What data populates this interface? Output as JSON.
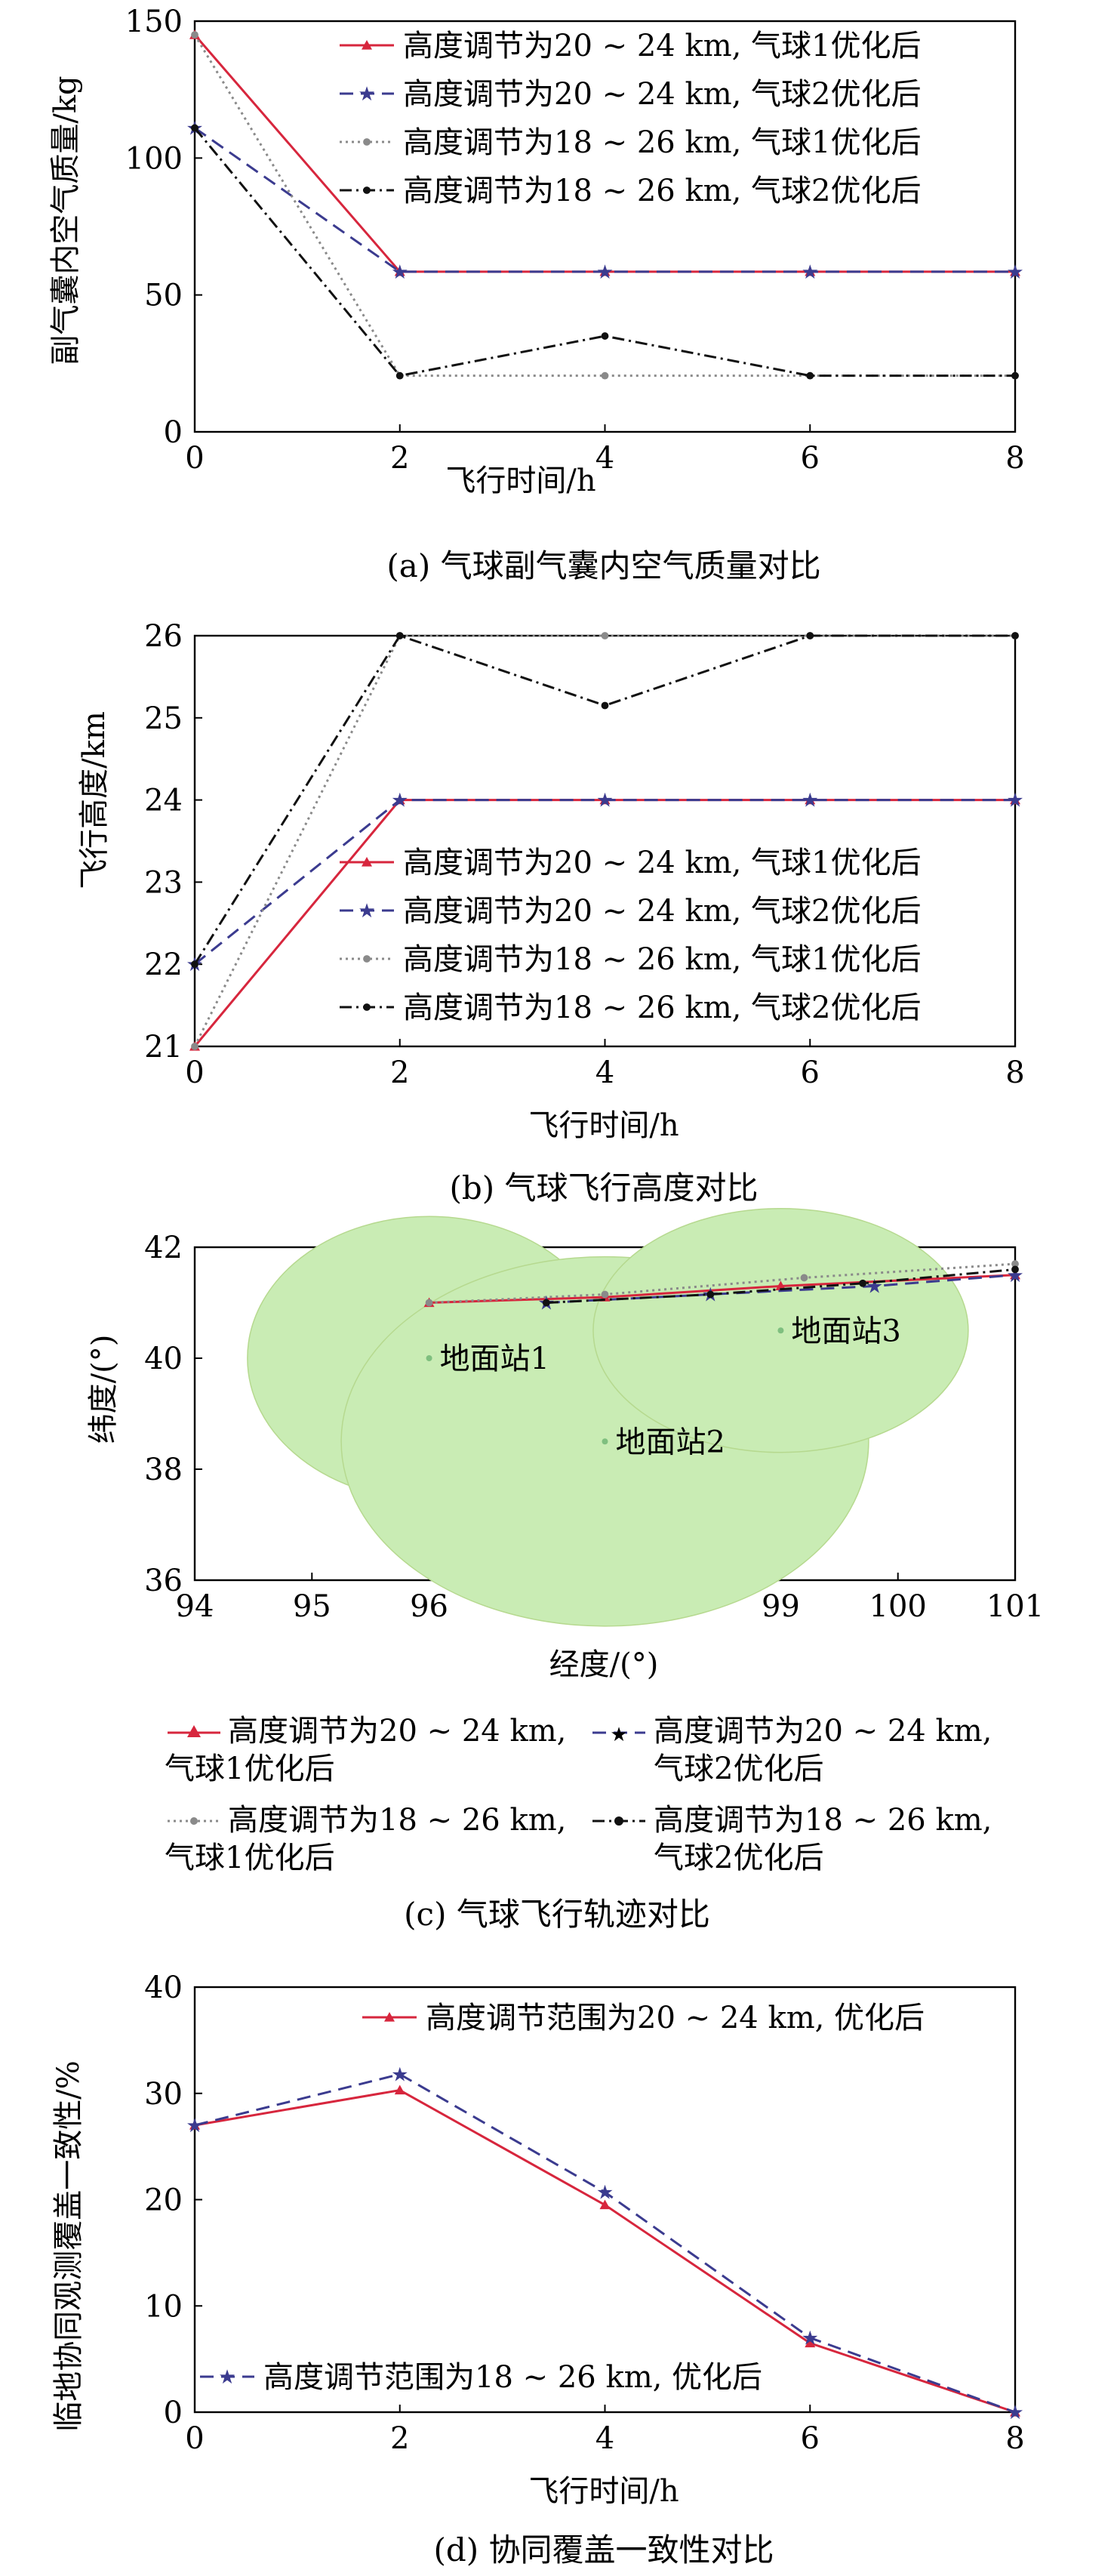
{
  "chart_data": [
    {
      "type": "line",
      "caption": "(a) 气球副气囊内空气质量对比",
      "xlabel": "飞行时间/h",
      "ylabel": "副气囊内空气质量/kg",
      "xlim": [
        0,
        8
      ],
      "ylim": [
        0,
        150
      ],
      "xticks": [
        "0",
        "2",
        "4",
        "6",
        "8"
      ],
      "yticks": [
        "0",
        "50",
        "100",
        "150"
      ],
      "legend_position": "top-right",
      "x": [
        0,
        2,
        4,
        6,
        8
      ],
      "series": [
        {
          "name": "高度调节为20 ~ 24 km, 气球1优化后",
          "values": [
            145,
            58.5,
            58.5,
            58.5,
            58.5
          ],
          "color": "#d7263d",
          "dash": "",
          "marker": "triangle"
        },
        {
          "name": "高度调节为20 ~ 24 km, 气球2优化后",
          "values": [
            111,
            58.5,
            58.5,
            58.5,
            58.5
          ],
          "color": "#3b3b8f",
          "dash": "18 10",
          "marker": "star"
        },
        {
          "name": "高度调节为18 ~ 26 km, 气球1优化后",
          "values": [
            145,
            20.5,
            20.5,
            20.5,
            20.5
          ],
          "color": "#8a8a8a",
          "dash": "3 5",
          "marker": "dot"
        },
        {
          "name": "高度调节为18 ~ 26 km, 气球2优化后",
          "values": [
            111,
            20.5,
            35,
            20.5,
            20.5
          ],
          "color": "#111111",
          "dash": "16 6 3 6",
          "marker": "dot"
        }
      ]
    },
    {
      "type": "line",
      "caption": "(b) 气球飞行高度对比",
      "xlabel": "飞行时间/h",
      "ylabel": "飞行高度/km",
      "xlim": [
        0,
        8
      ],
      "ylim": [
        21,
        26
      ],
      "xticks": [
        "0",
        "2",
        "4",
        "6",
        "8"
      ],
      "yticks": [
        "21",
        "22",
        "23",
        "24",
        "25",
        "26"
      ],
      "legend_position": "bottom-right",
      "x": [
        0,
        2,
        4,
        6,
        8
      ],
      "series": [
        {
          "name": "高度调节为20 ~ 24 km, 气球1优化后",
          "values": [
            21,
            24,
            24,
            24,
            24
          ],
          "color": "#d7263d",
          "dash": "",
          "marker": "triangle"
        },
        {
          "name": "高度调节为20 ~ 24 km, 气球2优化后",
          "values": [
            22,
            24,
            24,
            24,
            24
          ],
          "color": "#3b3b8f",
          "dash": "18 10",
          "marker": "star"
        },
        {
          "name": "高度调节为18 ~ 26 km, 气球1优化后",
          "values": [
            21,
            26,
            26,
            26,
            26
          ],
          "color": "#8a8a8a",
          "dash": "3 5",
          "marker": "dot"
        },
        {
          "name": "高度调节为18 ~ 26 km, 气球2优化后",
          "values": [
            22,
            26,
            25.15,
            26,
            26
          ],
          "color": "#111111",
          "dash": "16 6 3 6",
          "marker": "dot"
        }
      ]
    },
    {
      "type": "line",
      "caption": "(c) 气球飞行轨迹对比",
      "xlabel": "经度/(°)",
      "ylabel": "纬度/(°)",
      "xlim": [
        94,
        101
      ],
      "ylim": [
        36,
        42
      ],
      "xticks": [
        "94",
        "95",
        "96",
        "97",
        "98",
        "99",
        "100",
        "101"
      ],
      "yticks": [
        "36",
        "38",
        "40",
        "42"
      ],
      "legend_position": "below",
      "coverage_color": "#c9ecb4",
      "stations": [
        {
          "name": "地面站1",
          "lon": 96,
          "lat": 40
        },
        {
          "name": "地面站2",
          "lon": 97.5,
          "lat": 38.5
        },
        {
          "name": "地面站3",
          "lon": 99,
          "lat": 40.5
        }
      ],
      "series": [
        {
          "name": "高度调节为20 ~ 24 km, 气球1优化后",
          "color": "#d7263d",
          "dash": "",
          "marker": "triangle",
          "points": [
            [
              96,
              41
            ],
            [
              97.5,
              41.1
            ],
            [
              99,
              41.3
            ],
            [
              101,
              41.5
            ]
          ]
        },
        {
          "name": "高度调节为20 ~ 24 km, 气球2优化后",
          "color": "#3b3b8f",
          "dash": "18 10",
          "marker": "star",
          "points": [
            [
              97,
              41
            ],
            [
              98.4,
              41.15
            ],
            [
              99.8,
              41.3
            ],
            [
              101,
              41.5
            ]
          ]
        },
        {
          "name": "高度调节为18 ~ 26 km, 气球1优化后",
          "color": "#8a8a8a",
          "dash": "3 5",
          "marker": "dot",
          "points": [
            [
              96,
              41
            ],
            [
              97.5,
              41.15
            ],
            [
              99.2,
              41.45
            ],
            [
              101,
              41.7
            ]
          ]
        },
        {
          "name": "高度调节为18 ~ 26 km, 气球2优化后",
          "color": "#111111",
          "dash": "16 6 3 6",
          "marker": "dot",
          "points": [
            [
              97,
              41
            ],
            [
              98.4,
              41.15
            ],
            [
              99.7,
              41.35
            ],
            [
              101,
              41.6
            ]
          ]
        }
      ],
      "legend_lines": [
        [
          "高度调节为20 ~ 24 km,",
          "气球1优化后"
        ],
        [
          "高度调节为20 ~ 24 km,",
          "气球2优化后"
        ],
        [
          "高度调节为18 ~ 26 km,",
          "气球1优化后"
        ],
        [
          "高度调节为18 ~ 26 km,",
          "气球2优化后"
        ]
      ]
    },
    {
      "type": "line",
      "caption": "(d) 协同覆盖一致性对比",
      "xlabel": "飞行时间/h",
      "ylabel": "临地协同观测覆盖一致性/%",
      "xlim": [
        0,
        8
      ],
      "ylim": [
        0,
        40
      ],
      "xticks": [
        "0",
        "2",
        "4",
        "6",
        "8"
      ],
      "yticks": [
        "0",
        "10",
        "20",
        "30",
        "40"
      ],
      "x": [
        0,
        2,
        4,
        6,
        8
      ],
      "series": [
        {
          "name": "高度调节范围为20 ~ 24 km, 优化后",
          "values": [
            27,
            30.3,
            19.5,
            6.5,
            0
          ],
          "color": "#d7263d",
          "dash": "",
          "marker": "triangle",
          "legend_position": "top-right"
        },
        {
          "name": "高度调节范围为18 ~ 26 km, 优化后",
          "values": [
            27,
            31.8,
            20.7,
            7,
            0
          ],
          "color": "#3b3b8f",
          "dash": "18 10",
          "marker": "star",
          "legend_position": "bottom-left"
        }
      ]
    }
  ]
}
